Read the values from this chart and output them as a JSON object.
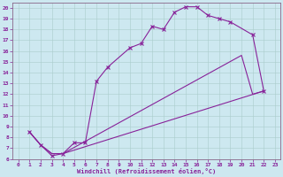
{
  "xlabel": "Windchill (Refroidissement éolien,°C)",
  "bg_color": "#cde8f0",
  "line_color": "#882299",
  "grid_color": "#aacccc",
  "spine_color": "#886688",
  "xlim": [
    -0.5,
    23.5
  ],
  "ylim": [
    6,
    20.5
  ],
  "xticks": [
    0,
    1,
    2,
    3,
    4,
    5,
    6,
    7,
    8,
    9,
    10,
    11,
    12,
    13,
    14,
    15,
    16,
    17,
    18,
    19,
    20,
    21,
    22,
    23
  ],
  "yticks": [
    6,
    7,
    8,
    9,
    10,
    11,
    12,
    13,
    14,
    15,
    16,
    17,
    18,
    19,
    20
  ],
  "line1_x": [
    1,
    2,
    3,
    4,
    5,
    6,
    7,
    8,
    10,
    11,
    12,
    13,
    14,
    15,
    16,
    17,
    18,
    19,
    21,
    22
  ],
  "line1_y": [
    8.5,
    7.3,
    6.3,
    6.5,
    7.5,
    7.5,
    13.2,
    14.5,
    16.3,
    16.7,
    18.3,
    18.0,
    19.6,
    20.1,
    20.1,
    19.3,
    19.0,
    18.7,
    17.5,
    12.3
  ],
  "line2_x": [
    1,
    2,
    3,
    4,
    22
  ],
  "line2_y": [
    8.5,
    7.3,
    6.5,
    6.5,
    12.3
  ],
  "line3_x": [
    1,
    2,
    3,
    4,
    20,
    21,
    22
  ],
  "line3_y": [
    8.5,
    7.3,
    6.5,
    6.5,
    15.6,
    12.0,
    12.3
  ]
}
